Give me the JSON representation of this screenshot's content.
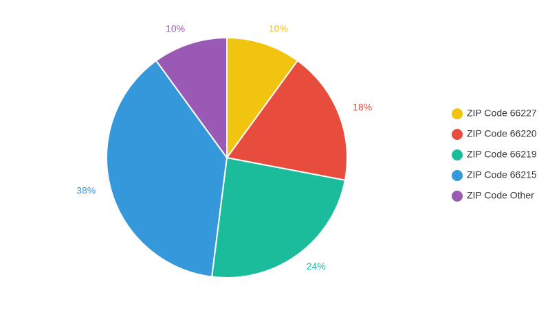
{
  "chart_data": {
    "type": "pie",
    "title": "",
    "legend_position": "right",
    "slices": [
      {
        "label": "ZIP Code 66227",
        "value": 10,
        "display": "10%",
        "color": "#f1c40f"
      },
      {
        "label": "ZIP Code 66220",
        "value": 18,
        "display": "18%",
        "color": "#e74c3c"
      },
      {
        "label": "ZIP Code 66219",
        "value": 24,
        "display": "24%",
        "color": "#1abc9c"
      },
      {
        "label": "ZIP Code 66215",
        "value": 38,
        "display": "38%",
        "color": "#3498db"
      },
      {
        "label": "ZIP Code Other",
        "value": 10,
        "display": "10%",
        "color": "#9b59b6"
      }
    ]
  }
}
